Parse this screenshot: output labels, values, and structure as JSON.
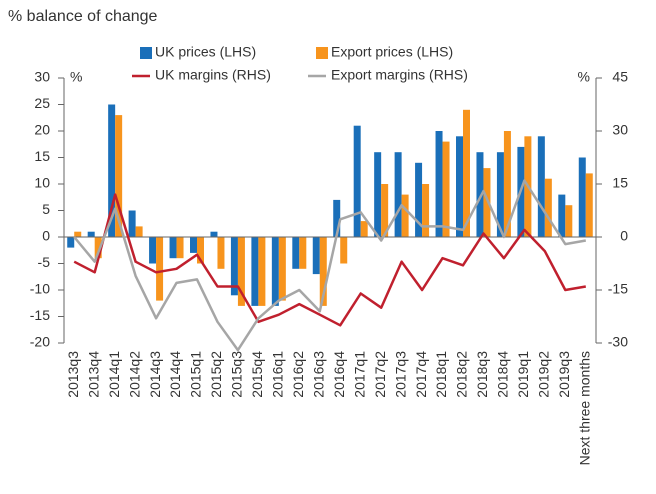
{
  "chart_data": {
    "type": "bar",
    "title": "% balance of change",
    "y_unit": "%",
    "y2_unit": "%",
    "categories": [
      "2013q3",
      "2013q4",
      "2014q1",
      "2014q2",
      "2014q3",
      "2014q4",
      "2015q1",
      "2015q2",
      "2015q3",
      "2015q4",
      "2016q1",
      "2016q2",
      "2016q3",
      "2016q4",
      "2017q1",
      "2017q2",
      "2017q3",
      "2017q4",
      "2018q1",
      "2018q2",
      "2018q3",
      "2018q4",
      "2019q1",
      "2019q2",
      "2019q3",
      "Next three months"
    ],
    "series": [
      {
        "name": "UK prices (LHS)",
        "type": "bar",
        "color": "#1a6fb9",
        "values": [
          -2,
          1,
          25,
          5,
          -5,
          -4,
          -3,
          1,
          -11,
          -13,
          -13,
          -6,
          -7,
          7,
          21,
          16,
          16,
          14,
          20,
          19,
          16,
          16,
          17,
          19,
          8,
          15
        ]
      },
      {
        "name": "Export prices (LHS)",
        "type": "bar",
        "color": "#f7941d",
        "values": [
          1,
          -4,
          23,
          2,
          -12,
          -4,
          -5,
          -6,
          -13,
          -13,
          -12,
          -6,
          -13,
          -5,
          3,
          10,
          8,
          10,
          18,
          24,
          13,
          20,
          19,
          11,
          6,
          12
        ]
      },
      {
        "name": "UK margins (RHS)",
        "type": "line",
        "axis": "y2",
        "color": "#c0202e",
        "values": [
          -7,
          -10,
          12,
          -7,
          -10,
          -9,
          -5,
          -14,
          -14,
          -24,
          -22,
          -19,
          -22,
          -25,
          -16,
          -20,
          -7,
          -15,
          -6,
          -8,
          1,
          -6,
          2,
          -4,
          -15,
          -14
        ]
      },
      {
        "name": "Export margins (RHS)",
        "type": "line",
        "axis": "y2",
        "color": "#a6a6a6",
        "values": [
          0,
          -7,
          8,
          -11,
          -23,
          -13,
          -12,
          -24,
          -32,
          -23,
          -18,
          -15,
          -21,
          5,
          7,
          -1,
          9,
          3,
          3,
          2,
          13,
          0,
          16,
          7,
          -2,
          -1
        ]
      }
    ],
    "ylim": [
      -20,
      30
    ],
    "yticks": [
      -20,
      -15,
      -10,
      -5,
      0,
      5,
      10,
      15,
      20,
      25,
      30
    ],
    "y2lim": [
      -30,
      45
    ],
    "y2ticks": [
      -30,
      -15,
      0,
      15,
      30,
      45
    ]
  }
}
